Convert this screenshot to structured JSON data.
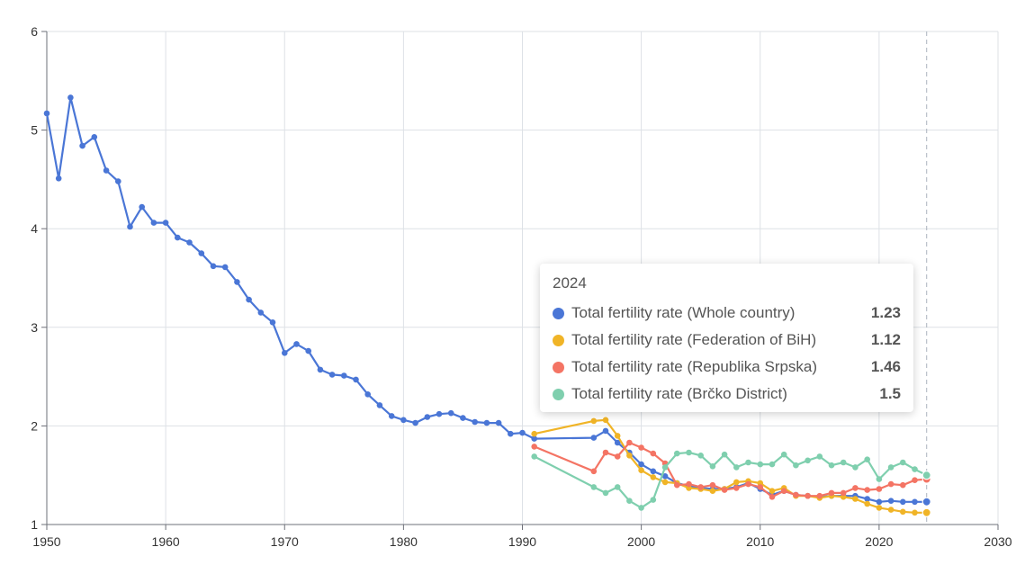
{
  "chart_data": {
    "type": "line",
    "title": "",
    "xlabel": "",
    "ylabel": "",
    "xlim": [
      1950,
      2030
    ],
    "ylim": [
      1,
      6
    ],
    "xticks": [
      1950,
      1960,
      1970,
      1980,
      1990,
      2000,
      2010,
      2020,
      2030
    ],
    "yticks": [
      1,
      2,
      3,
      4,
      5,
      6
    ],
    "grid": true,
    "hover_x": 2024,
    "series": [
      {
        "name": "Total fertility rate (Whole country)",
        "color": "#4a76d6",
        "x": [
          1950,
          1951,
          1952,
          1953,
          1954,
          1955,
          1956,
          1957,
          1958,
          1959,
          1960,
          1961,
          1962,
          1963,
          1964,
          1965,
          1966,
          1967,
          1968,
          1969,
          1970,
          1971,
          1972,
          1973,
          1974,
          1975,
          1976,
          1977,
          1978,
          1979,
          1980,
          1981,
          1982,
          1983,
          1984,
          1985,
          1986,
          1987,
          1988,
          1989,
          1990,
          1991,
          1996,
          1997,
          1998,
          1999,
          2000,
          2001,
          2002,
          2003,
          2004,
          2005,
          2006,
          2007,
          2008,
          2009,
          2010,
          2011,
          2012,
          2013,
          2014,
          2015,
          2016,
          2017,
          2018,
          2019,
          2020,
          2021,
          2022,
          2023,
          2024
        ],
        "values": [
          5.17,
          4.51,
          5.33,
          4.84,
          4.93,
          4.59,
          4.48,
          4.02,
          4.22,
          4.06,
          4.06,
          3.91,
          3.86,
          3.75,
          3.62,
          3.61,
          3.46,
          3.28,
          3.15,
          3.05,
          2.74,
          2.83,
          2.76,
          2.57,
          2.52,
          2.51,
          2.47,
          2.32,
          2.21,
          2.1,
          2.06,
          2.03,
          2.09,
          2.12,
          2.13,
          2.08,
          2.04,
          2.03,
          2.03,
          1.92,
          1.93,
          1.87,
          1.88,
          1.95,
          1.83,
          1.73,
          1.61,
          1.54,
          1.49,
          1.42,
          1.39,
          1.37,
          1.36,
          1.36,
          1.38,
          1.42,
          1.36,
          1.3,
          1.34,
          1.3,
          1.29,
          1.28,
          1.29,
          1.29,
          1.29,
          1.26,
          1.23,
          1.24,
          1.23,
          1.23,
          1.23
        ],
        "tooltip_value": "1.23"
      },
      {
        "name": "Total fertility rate (Federation of BiH)",
        "color": "#f0b427",
        "x": [
          1991,
          1996,
          1997,
          1998,
          1999,
          2000,
          2001,
          2002,
          2003,
          2004,
          2005,
          2006,
          2007,
          2008,
          2009,
          2010,
          2011,
          2012,
          2013,
          2014,
          2015,
          2016,
          2017,
          2018,
          2019,
          2020,
          2021,
          2022,
          2023,
          2024
        ],
        "values": [
          1.92,
          2.05,
          2.06,
          1.9,
          1.7,
          1.55,
          1.48,
          1.43,
          1.42,
          1.37,
          1.36,
          1.34,
          1.36,
          1.43,
          1.44,
          1.42,
          1.34,
          1.37,
          1.29,
          1.29,
          1.27,
          1.29,
          1.28,
          1.26,
          1.21,
          1.17,
          1.15,
          1.13,
          1.12,
          1.12
        ],
        "tooltip_value": "1.12"
      },
      {
        "name": "Total fertility rate (Republika Srpska)",
        "color": "#f47464",
        "x": [
          1991,
          1996,
          1997,
          1998,
          1999,
          2000,
          2001,
          2002,
          2003,
          2004,
          2005,
          2006,
          2007,
          2008,
          2009,
          2010,
          2011,
          2012,
          2013,
          2014,
          2015,
          2016,
          2017,
          2018,
          2019,
          2020,
          2021,
          2022,
          2023,
          2024
        ],
        "values": [
          1.79,
          1.54,
          1.73,
          1.69,
          1.83,
          1.78,
          1.72,
          1.62,
          1.4,
          1.41,
          1.38,
          1.4,
          1.35,
          1.37,
          1.41,
          1.38,
          1.28,
          1.34,
          1.3,
          1.29,
          1.29,
          1.32,
          1.32,
          1.37,
          1.35,
          1.36,
          1.41,
          1.4,
          1.45,
          1.46
        ],
        "tooltip_value": "1.46"
      },
      {
        "name": "Total fertility rate (Brčko District)",
        "color": "#7fcfae",
        "x": [
          1991,
          1996,
          1997,
          1998,
          1999,
          2000,
          2001,
          2002,
          2003,
          2004,
          2005,
          2006,
          2007,
          2008,
          2009,
          2010,
          2011,
          2012,
          2013,
          2014,
          2015,
          2016,
          2017,
          2018,
          2019,
          2020,
          2021,
          2022,
          2023,
          2024
        ],
        "values": [
          1.69,
          1.38,
          1.32,
          1.38,
          1.24,
          1.17,
          1.25,
          1.58,
          1.72,
          1.73,
          1.7,
          1.59,
          1.71,
          1.58,
          1.63,
          1.61,
          1.61,
          1.71,
          1.6,
          1.65,
          1.69,
          1.6,
          1.63,
          1.58,
          1.66,
          1.46,
          1.58,
          1.63,
          1.56,
          1.5
        ],
        "tooltip_value": "1.5"
      }
    ]
  },
  "tooltip": {
    "title": "2024"
  }
}
